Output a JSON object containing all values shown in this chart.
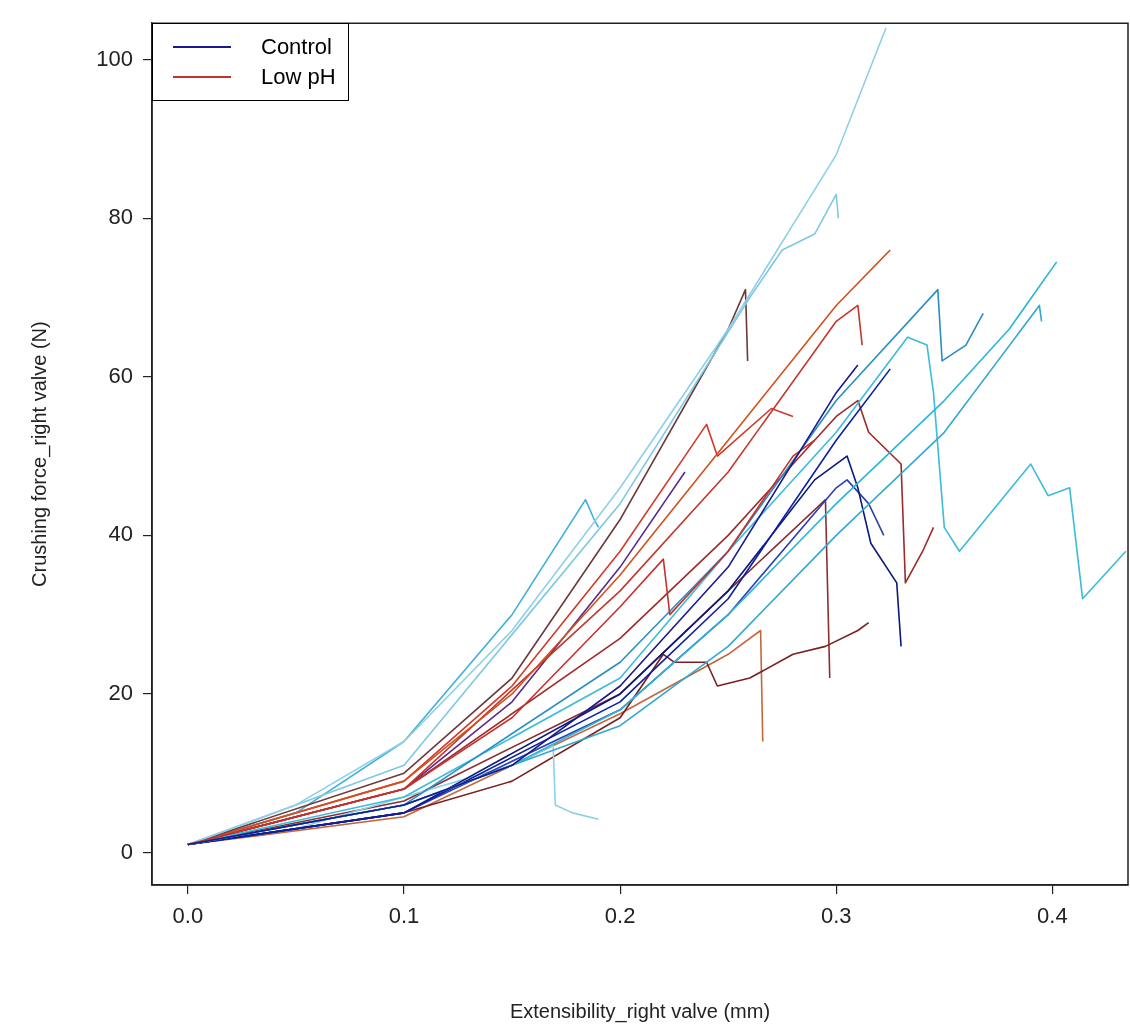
{
  "chart_data": {
    "type": "line",
    "xlabel": "Extensibility_right valve (mm)",
    "ylabel": "Crushing force_right valve (N)",
    "xlim": [
      -0.0166,
      0.435
    ],
    "ylim": [
      -4.1,
      104.6
    ],
    "xticks": [
      {
        "value": 0,
        "label": "0.0"
      },
      0.1,
      0.2,
      0.3,
      0.4
    ],
    "yticks": [
      0,
      20,
      40,
      60,
      80,
      100
    ],
    "grid": false,
    "legend": "top left",
    "marker": "none",
    "line_style": "solid",
    "series": [
      {
        "name": "Control",
        "color": "#1a1a8c",
        "x": [
          0,
          0.1,
          0.15,
          0.2,
          0.25,
          0.3,
          0.31
        ],
        "values": [
          1,
          6,
          11,
          21,
          36,
          58,
          61.5
        ]
      },
      {
        "name": "Low pH",
        "color": "#c8302c",
        "x": [
          0,
          0.1,
          0.15,
          0.2,
          0.22,
          0.223,
          0.25,
          0.28,
          0.29
        ],
        "values": [
          1,
          8,
          17,
          31,
          37,
          30,
          38,
          50,
          52
        ]
      },
      {
        "color": "#8fcfe8",
        "x": [
          0,
          0.05,
          0.1,
          0.15,
          0.2,
          0.25,
          0.3,
          0.323
        ],
        "values": [
          1,
          6,
          14,
          28,
          46,
          66,
          88,
          104
        ]
      },
      {
        "color": "#7ec8e3",
        "x": [
          0,
          0.1,
          0.2,
          0.26,
          0.27,
          0.275,
          0.29,
          0.3,
          0.301
        ],
        "values": [
          1,
          11,
          44,
          70,
          74,
          76,
          78,
          83,
          80
        ]
      },
      {
        "color": "#6b3a3a",
        "x": [
          0,
          0.1,
          0.15,
          0.2,
          0.25,
          0.258,
          0.259
        ],
        "values": [
          1,
          10,
          22,
          42,
          66,
          71,
          62
        ]
      },
      {
        "color": "#d2501e",
        "x": [
          0,
          0.1,
          0.15,
          0.2,
          0.25,
          0.3,
          0.325
        ],
        "values": [
          1,
          9,
          20,
          35,
          52,
          69,
          76
        ]
      },
      {
        "color": "#c0392b",
        "x": [
          0,
          0.1,
          0.2,
          0.25,
          0.3,
          0.31,
          0.312
        ],
        "values": [
          1,
          8,
          33,
          48,
          67,
          69,
          64
        ]
      },
      {
        "color": "#2a8fc0",
        "x": [
          0,
          0.1,
          0.2,
          0.25,
          0.3,
          0.347,
          0.349,
          0.36,
          0.368
        ],
        "values": [
          1,
          6,
          24,
          38,
          57,
          71,
          62,
          64,
          68
        ]
      },
      {
        "color": "#29b6d6",
        "x": [
          0,
          0.1,
          0.15,
          0.2,
          0.25,
          0.3,
          0.35,
          0.38,
          0.402
        ],
        "values": [
          1,
          6,
          11,
          18,
          30,
          44,
          57,
          66,
          74.5
        ]
      },
      {
        "color": "#31a8d0",
        "x": [
          0,
          0.1,
          0.2,
          0.25,
          0.3,
          0.35,
          0.394,
          0.395
        ],
        "values": [
          1,
          6,
          16,
          26,
          40,
          53,
          69,
          67
        ]
      },
      {
        "color": "#3cbcd8",
        "x": [
          0,
          0.1,
          0.2,
          0.25,
          0.3,
          0.333,
          0.342,
          0.345,
          0.35,
          0.357,
          0.39,
          0.398,
          0.408,
          0.414,
          0.434
        ],
        "values": [
          1,
          7,
          22,
          38,
          53,
          65,
          64,
          58,
          41,
          38,
          49,
          45,
          46,
          32,
          38
        ]
      },
      {
        "color": "#0d1f9e",
        "x": [
          0,
          0.1,
          0.2,
          0.25,
          0.3,
          0.325
        ],
        "values": [
          1,
          5,
          19,
          32,
          52,
          61
        ]
      },
      {
        "color": "#0a1a7a",
        "x": [
          0,
          0.1,
          0.2,
          0.25,
          0.29,
          0.305,
          0.31,
          0.316,
          0.328,
          0.33
        ],
        "values": [
          1,
          5,
          20,
          33,
          47,
          50,
          46,
          39,
          34,
          26
        ]
      },
      {
        "color": "#2b3fb5",
        "x": [
          0,
          0.1,
          0.2,
          0.25,
          0.3,
          0.305,
          0.315,
          0.322
        ],
        "values": [
          1,
          5,
          18,
          30,
          46,
          47,
          44,
          40
        ]
      },
      {
        "color": "#3fb0d8",
        "x": [
          0,
          0.05,
          0.1,
          0.15,
          0.184,
          0.188,
          0.19
        ],
        "values": [
          1,
          5,
          14,
          30,
          44.5,
          42,
          41
        ]
      },
      {
        "color": "#8ed0e6",
        "x": [
          0,
          0.05,
          0.1,
          0.15,
          0.169,
          0.17,
          0.178,
          0.19
        ],
        "values": [
          1,
          3,
          7,
          11,
          13.5,
          6,
          5,
          4.2
        ]
      },
      {
        "color": "#7a2020",
        "x": [
          0,
          0.1,
          0.15,
          0.2,
          0.22,
          0.225,
          0.24,
          0.245,
          0.26,
          0.28,
          0.295,
          0.31,
          0.315
        ],
        "values": [
          1,
          5,
          9,
          17,
          25,
          24,
          24,
          21,
          22,
          25,
          26,
          28,
          29
        ]
      },
      {
        "color": "#8b2e2e",
        "x": [
          0,
          0.1,
          0.2,
          0.25,
          0.295,
          0.297
        ],
        "values": [
          1,
          6.5,
          20,
          33,
          44.5,
          22
        ]
      },
      {
        "color": "#c4673e",
        "x": [
          0,
          0.1,
          0.2,
          0.25,
          0.265,
          0.266
        ],
        "values": [
          1,
          4.5,
          17.5,
          25,
          28,
          14
        ]
      },
      {
        "color": "#9e2a2a",
        "x": [
          0,
          0.1,
          0.2,
          0.25,
          0.3,
          0.31,
          0.315,
          0.33,
          0.332,
          0.34,
          0.345
        ],
        "values": [
          1,
          8,
          27,
          40,
          55,
          57,
          53,
          49,
          34,
          38,
          41
        ]
      },
      {
        "color": "#d03a2a",
        "x": [
          0,
          0.1,
          0.15,
          0.2,
          0.24,
          0.245,
          0.27,
          0.28
        ],
        "values": [
          1,
          9,
          21,
          38,
          54,
          50,
          56,
          55
        ]
      },
      {
        "color": "#5a2a8a",
        "x": [
          0,
          0.1,
          0.15,
          0.2,
          0.22,
          0.23
        ],
        "values": [
          1,
          8,
          19,
          36,
          44,
          48
        ]
      }
    ]
  }
}
